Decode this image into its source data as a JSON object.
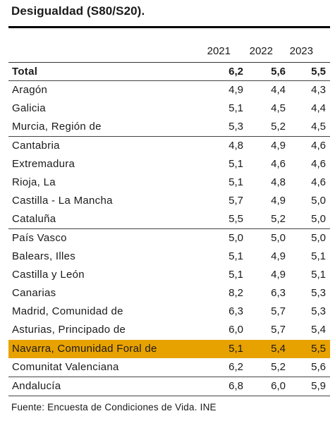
{
  "title": "Desigualdad (S80/S20).",
  "columns": [
    "2021",
    "2022",
    "2023"
  ],
  "rows": [
    {
      "label": "Total",
      "values": [
        "6,2",
        "5,6",
        "5,5"
      ]
    },
    {
      "label": "Aragón",
      "values": [
        "4,9",
        "4,4",
        "4,3"
      ]
    },
    {
      "label": "Galicia",
      "values": [
        "5,1",
        "4,5",
        "4,4"
      ]
    },
    {
      "label": "Murcia, Región de",
      "values": [
        "5,3",
        "5,2",
        "4,5"
      ]
    },
    {
      "label": "Cantabria",
      "values": [
        "4,8",
        "4,9",
        "4,6"
      ]
    },
    {
      "label": "Extremadura",
      "values": [
        "5,1",
        "4,6",
        "4,6"
      ]
    },
    {
      "label": "Rioja, La",
      "values": [
        "5,1",
        "4,8",
        "4,6"
      ]
    },
    {
      "label": "Castilla - La Mancha",
      "values": [
        "5,7",
        "4,9",
        "5,0"
      ]
    },
    {
      "label": "Cataluña",
      "values": [
        "5,5",
        "5,2",
        "5,0"
      ]
    },
    {
      "label": "País Vasco",
      "values": [
        "5,0",
        "5,0",
        "5,0"
      ]
    },
    {
      "label": "Balears, Illes",
      "values": [
        "5,1",
        "4,9",
        "5,1"
      ]
    },
    {
      "label": "Castilla y León",
      "values": [
        "5,1",
        "4,9",
        "5,1"
      ]
    },
    {
      "label": "Canarias",
      "values": [
        "8,2",
        "6,3",
        "5,3"
      ]
    },
    {
      "label": "Madrid, Comunidad de",
      "values": [
        "6,3",
        "5,7",
        "5,3"
      ]
    },
    {
      "label": "Asturias, Principado de",
      "values": [
        "6,0",
        "5,7",
        "5,4"
      ]
    },
    {
      "label": "Navarra, Comunidad Foral de",
      "values": [
        "5,1",
        "5,4",
        "5,5"
      ]
    },
    {
      "label": "Comunitat Valenciana",
      "values": [
        "6,2",
        "5,2",
        "5,6"
      ]
    },
    {
      "label": "Andalucía",
      "values": [
        "6,8",
        "6,0",
        "5,9"
      ]
    }
  ],
  "highlight_color": "#E8A200",
  "source": "Fuente: Encuesta de Condiciones de Vida. INE"
}
